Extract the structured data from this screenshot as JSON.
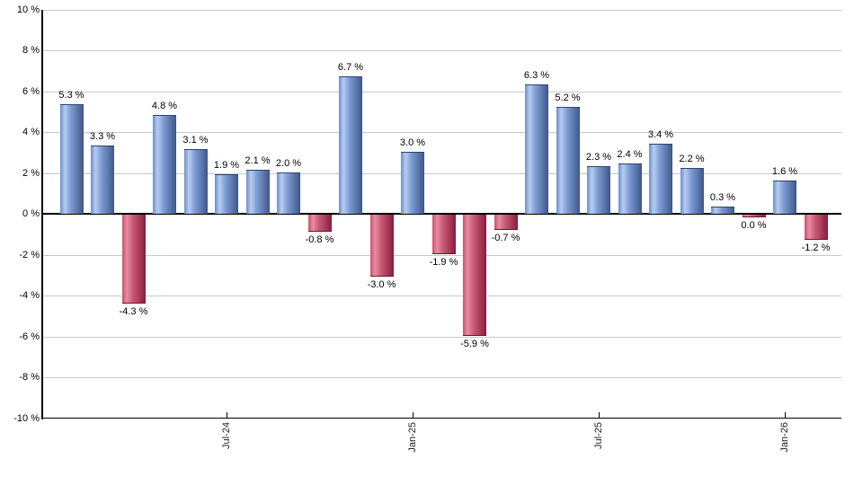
{
  "chart_data": {
    "type": "bar",
    "title": "",
    "xlabel": "",
    "ylabel": "",
    "ylim": [
      -10,
      10
    ],
    "grid": true,
    "legend_position": "none",
    "value_label_suffix": " %",
    "bars": [
      {
        "value": 5.3,
        "label": "5.3 %",
        "color": "blue"
      },
      {
        "value": 3.3,
        "label": "3.3 %",
        "color": "blue"
      },
      {
        "value": -4.3,
        "label": "-4.3 %",
        "color": "red"
      },
      {
        "value": 4.8,
        "label": "4.8 %",
        "color": "blue"
      },
      {
        "value": 3.1,
        "label": "3.1 %",
        "color": "blue"
      },
      {
        "value": 1.9,
        "label": "1.9 %",
        "color": "blue"
      },
      {
        "value": 2.1,
        "label": "2.1 %",
        "color": "blue"
      },
      {
        "value": 2.0,
        "label": "2.0 %",
        "color": "blue"
      },
      {
        "value": -0.8,
        "label": "-0.8 %",
        "color": "red"
      },
      {
        "value": 6.7,
        "label": "6.7 %",
        "color": "blue"
      },
      {
        "value": -3.0,
        "label": "-3.0 %",
        "color": "red"
      },
      {
        "value": 3.0,
        "label": "3.0 %",
        "color": "blue"
      },
      {
        "value": -1.9,
        "label": "-1.9 %",
        "color": "red"
      },
      {
        "value": -5.9,
        "label": "-5.9 %",
        "color": "red"
      },
      {
        "value": -0.7,
        "label": "-0.7 %",
        "color": "red"
      },
      {
        "value": 6.3,
        "label": "6.3 %",
        "color": "blue"
      },
      {
        "value": 5.2,
        "label": "5.2 %",
        "color": "blue"
      },
      {
        "value": 2.3,
        "label": "2.3 %",
        "color": "blue"
      },
      {
        "value": 2.4,
        "label": "2.4 %",
        "color": "blue"
      },
      {
        "value": 3.4,
        "label": "3.4 %",
        "color": "blue"
      },
      {
        "value": 2.2,
        "label": "2.2 %",
        "color": "blue"
      },
      {
        "value": 0.3,
        "label": "0.3 %",
        "color": "blue"
      },
      {
        "value": 0.0,
        "label": "0.0 %",
        "color": "red"
      },
      {
        "value": 1.6,
        "label": "1.6 %",
        "color": "blue"
      },
      {
        "value": -1.2,
        "label": "-1.2 %",
        "color": "red"
      }
    ],
    "x_ticks": [
      {
        "bar_index": 5,
        "label": "Jul-24"
      },
      {
        "bar_index": 11,
        "label": "Jan-25"
      },
      {
        "bar_index": 17,
        "label": "Jul-25"
      },
      {
        "bar_index": 23,
        "label": "Jan-26"
      }
    ],
    "y_ticks": [
      {
        "value": 10,
        "label": "10 %"
      },
      {
        "value": 8,
        "label": "8 %"
      },
      {
        "value": 6,
        "label": "6 %"
      },
      {
        "value": 4,
        "label": "4 %"
      },
      {
        "value": 2,
        "label": "2 %"
      },
      {
        "value": 0,
        "label": "0 %"
      },
      {
        "value": -2,
        "label": "-2 %"
      },
      {
        "value": -4,
        "label": "-4 %"
      },
      {
        "value": -6,
        "label": "-6 %"
      },
      {
        "value": -8,
        "label": "-8 %"
      },
      {
        "value": -10,
        "label": "-10 %"
      }
    ],
    "colors": {
      "positive_start": "#6d8ec6",
      "positive_highlight": "#b7ccf1",
      "positive_mid": "#7e9cd4",
      "positive_edge": "#3d5788",
      "positive_cap": "#2c4470",
      "negative_start": "#c25672",
      "negative_highlight": "#ec8aa2",
      "negative_mid": "#c75b77",
      "negative_edge": "#8c1c3d",
      "negative_cap": "#70132f",
      "gridline": "#c9c9c9",
      "axis": "#000000",
      "label_text": "#000000",
      "background": "#ffffff"
    }
  }
}
